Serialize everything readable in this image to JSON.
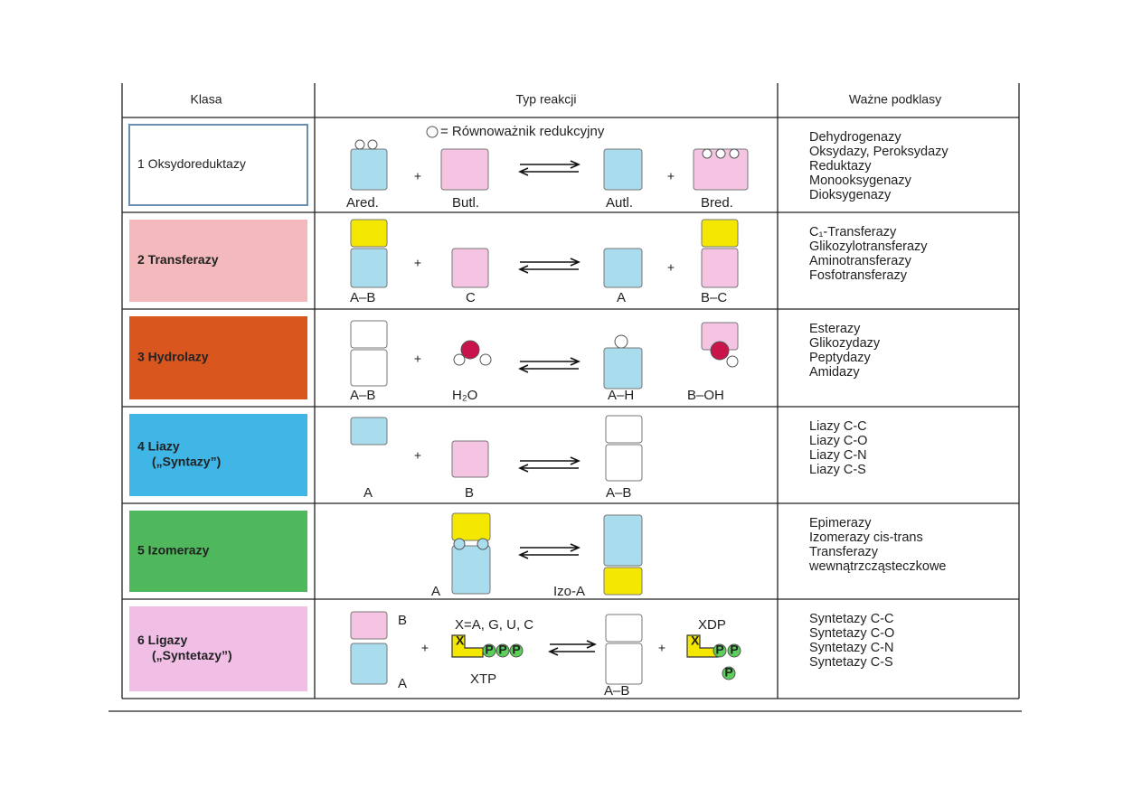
{
  "header": {
    "columns": [
      "Klasa",
      "Typ reakcji",
      "Ważne podklasy"
    ]
  },
  "rows": [
    {
      "class": [
        "1 Oksydoreduktazy"
      ],
      "reaction": {
        "note": "= Równoważnik redukcyjny",
        "labels": [
          "Ared.",
          "Butl.",
          "Autl.",
          "Bred."
        ]
      },
      "subclasses": [
        "Dehydrogenazy",
        "Oksydazy, Peroksydazy",
        "Reduktazy",
        "Monooksygenazy",
        "Dioksygenazy"
      ]
    },
    {
      "class": [
        "2 Transferazy"
      ],
      "reaction": {
        "labels": [
          "A–B",
          "C",
          "A",
          "B–C"
        ]
      },
      "subclasses": [
        "C₁-Transferazy",
        "Glikozylotransferazy",
        "Aminotransferazy",
        "Fosfotransferazy"
      ]
    },
    {
      "class": [
        "3 Hydrolazy"
      ],
      "reaction": {
        "labels": [
          "A–B",
          "H₂O",
          "A–H",
          "B–OH"
        ]
      },
      "subclasses": [
        "Esterazy",
        "Glikozydazy",
        "Peptydazy",
        "Amidazy"
      ]
    },
    {
      "class": [
        "4 Liazy",
        "(„Syntazy”)"
      ],
      "reaction": {
        "labels": [
          "A",
          "B",
          "A–B"
        ]
      },
      "subclasses": [
        "Liazy C-C",
        "Liazy C-O",
        "Liazy C-N",
        "Liazy C-S"
      ]
    },
    {
      "class": [
        "5 Izomerazy"
      ],
      "reaction": {
        "labels": [
          "A",
          "Izo-A"
        ]
      },
      "subclasses": [
        "Epimerazy",
        "Izomerazy cis-trans",
        "Transferazy",
        "wewnątrzcząsteczkowe"
      ]
    },
    {
      "class": [
        "6 Ligazy",
        "(„Syntetazy”)"
      ],
      "reaction": {
        "note": "X=A, G, U, C",
        "labels": [
          "B",
          "A",
          "XTP",
          "XDP",
          "A–B"
        ],
        "x_symbol": "X",
        "phosphate": "P"
      },
      "subclasses": [
        "Syntetazy C-C",
        "Syntetazy C-O",
        "Syntetazy C-N",
        "Syntetazy C-S"
      ]
    }
  ]
}
